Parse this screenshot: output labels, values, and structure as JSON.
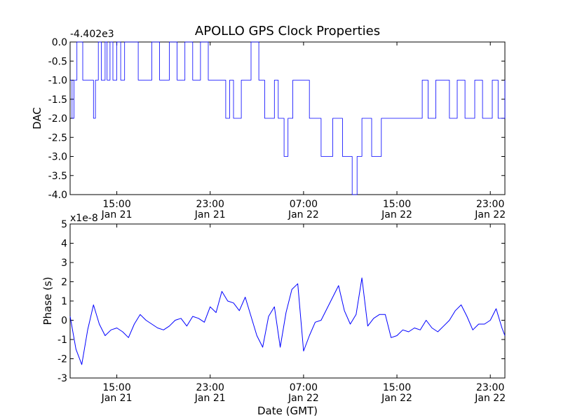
{
  "chart_data": [
    {
      "type": "line",
      "title": "APOLLO GPS Clock Properties",
      "xlabel": "",
      "ylabel": "DAC",
      "offset_label": "-4.402e3",
      "xlim": [
        "2011-01-21 11:00",
        "2011-01-23 00:15"
      ],
      "ylim": [
        -4.0,
        0.0
      ],
      "yticks": [
        "0.0",
        "-0.5",
        "-1.0",
        "-1.5",
        "-2.0",
        "-2.5",
        "-3.0",
        "-3.5",
        "-4.0"
      ],
      "xticks": [
        {
          "t": "2011-01-21 15:00",
          "time": "15:00",
          "date": "Jan 21"
        },
        {
          "t": "2011-01-21 23:00",
          "time": "23:00",
          "date": "Jan 21"
        },
        {
          "t": "2011-01-22 07:00",
          "time": "07:00",
          "date": "Jan 22"
        },
        {
          "t": "2011-01-22 15:00",
          "time": "15:00",
          "date": "Jan 22"
        },
        {
          "t": "2011-01-22 23:00",
          "time": "23:00",
          "date": "Jan 22"
        }
      ],
      "series": [
        {
          "x": [
            "2011-01-21 11:00",
            "2011-01-21 11:10",
            "2011-01-21 11:20",
            "2011-01-21 11:35",
            "2011-01-21 12:05",
            "2011-01-21 13:00",
            "2011-01-21 13:10",
            "2011-01-21 13:25",
            "2011-01-21 13:40",
            "2011-01-21 14:00",
            "2011-01-21 14:10",
            "2011-01-21 14:25",
            "2011-01-21 14:40",
            "2011-01-21 15:00",
            "2011-01-21 15:20",
            "2011-01-21 15:40",
            "2011-01-21 16:50",
            "2011-01-21 18:00",
            "2011-01-21 18:40",
            "2011-01-21 19:30",
            "2011-01-21 20:10",
            "2011-01-21 20:50",
            "2011-01-21 21:30",
            "2011-01-21 22:10",
            "2011-01-21 22:50",
            "2011-01-21 23:40",
            "2011-01-22 00:20",
            "2011-01-22 00:40",
            "2011-01-22 01:00",
            "2011-01-22 01:40",
            "2011-01-22 02:30",
            "2011-01-22 03:10",
            "2011-01-22 03:40",
            "2011-01-22 04:30",
            "2011-01-22 04:50",
            "2011-01-22 05:20",
            "2011-01-22 05:40",
            "2011-01-22 06:05",
            "2011-01-22 06:35",
            "2011-01-22 07:00",
            "2011-01-22 07:30",
            "2011-01-22 08:30",
            "2011-01-22 09:30",
            "2011-01-22 10:20",
            "2011-01-22 11:10",
            "2011-01-22 11:35",
            "2011-01-22 12:00",
            "2011-01-22 12:50",
            "2011-01-22 13:40",
            "2011-01-22 15:00",
            "2011-01-22 16:30",
            "2011-01-22 17:10",
            "2011-01-22 17:40",
            "2011-01-22 18:20",
            "2011-01-22 19:30",
            "2011-01-22 20:10",
            "2011-01-22 20:50",
            "2011-01-22 21:40",
            "2011-01-22 22:20",
            "2011-01-22 23:10",
            "2011-01-22 23:40",
            "2011-01-23 00:15"
          ],
          "values": [
            -1.0,
            -2.0,
            -1.0,
            0.0,
            -1.0,
            -2.0,
            -1.0,
            0.0,
            -1.0,
            0.0,
            -1.0,
            0.0,
            -1.0,
            0.0,
            -1.0,
            0.0,
            -1.0,
            0.0,
            -1.0,
            0.0,
            -1.0,
            0.0,
            -1.0,
            0.0,
            -1.0,
            -1.0,
            -2.0,
            -1.0,
            -2.0,
            -1.0,
            0.0,
            -1.0,
            -2.0,
            -1.0,
            -2.0,
            -3.0,
            -2.0,
            -1.0,
            -1.0,
            -1.0,
            -2.0,
            -3.0,
            -2.0,
            -3.0,
            -4.0,
            -3.0,
            -2.0,
            -3.0,
            -2.0,
            -2.0,
            -2.0,
            -1.0,
            -2.0,
            -1.0,
            -2.0,
            -1.0,
            -2.0,
            -1.0,
            -2.0,
            -1.0,
            -2.0,
            -1.0
          ]
        }
      ]
    },
    {
      "type": "line",
      "title": "",
      "xlabel": "Date (GMT)",
      "ylabel": "Phase (s)",
      "offset_label": "x1e-8",
      "xlim": [
        "2011-01-21 11:00",
        "2011-01-23 00:15"
      ],
      "ylim": [
        -3,
        5
      ],
      "yticks": [
        "5",
        "4",
        "3",
        "2",
        "1",
        "0",
        "-1",
        "-2",
        "-3"
      ],
      "xticks": [
        {
          "t": "2011-01-21 15:00",
          "time": "15:00",
          "date": "Jan 21"
        },
        {
          "t": "2011-01-21 23:00",
          "time": "23:00",
          "date": "Jan 21"
        },
        {
          "t": "2011-01-22 07:00",
          "time": "07:00",
          "date": "Jan 22"
        },
        {
          "t": "2011-01-22 15:00",
          "time": "15:00",
          "date": "Jan 22"
        },
        {
          "t": "2011-01-22 23:00",
          "time": "23:00",
          "date": "Jan 22"
        }
      ],
      "series": [
        {
          "x": [
            "2011-01-21 11:00",
            "2011-01-21 11:30",
            "2011-01-21 12:00",
            "2011-01-21 12:30",
            "2011-01-21 13:00",
            "2011-01-21 13:30",
            "2011-01-21 14:00",
            "2011-01-21 14:30",
            "2011-01-21 15:00",
            "2011-01-21 15:30",
            "2011-01-21 16:00",
            "2011-01-21 16:30",
            "2011-01-21 17:00",
            "2011-01-21 17:30",
            "2011-01-21 18:00",
            "2011-01-21 18:30",
            "2011-01-21 19:00",
            "2011-01-21 19:30",
            "2011-01-21 20:00",
            "2011-01-21 20:30",
            "2011-01-21 21:00",
            "2011-01-21 21:30",
            "2011-01-21 22:00",
            "2011-01-21 22:30",
            "2011-01-21 23:00",
            "2011-01-21 23:30",
            "2011-01-22 00:00",
            "2011-01-22 00:30",
            "2011-01-22 01:00",
            "2011-01-22 01:30",
            "2011-01-22 02:00",
            "2011-01-22 02:30",
            "2011-01-22 03:00",
            "2011-01-22 03:30",
            "2011-01-22 04:00",
            "2011-01-22 04:30",
            "2011-01-22 05:00",
            "2011-01-22 05:30",
            "2011-01-22 06:00",
            "2011-01-22 06:30",
            "2011-01-22 07:00",
            "2011-01-22 07:30",
            "2011-01-22 08:00",
            "2011-01-22 08:30",
            "2011-01-22 09:00",
            "2011-01-22 09:30",
            "2011-01-22 10:00",
            "2011-01-22 10:30",
            "2011-01-22 11:00",
            "2011-01-22 11:30",
            "2011-01-22 12:00",
            "2011-01-22 12:30",
            "2011-01-22 13:00",
            "2011-01-22 13:30",
            "2011-01-22 14:00",
            "2011-01-22 14:30",
            "2011-01-22 15:00",
            "2011-01-22 15:30",
            "2011-01-22 16:00",
            "2011-01-22 16:30",
            "2011-01-22 17:00",
            "2011-01-22 17:30",
            "2011-01-22 18:00",
            "2011-01-22 18:30",
            "2011-01-22 19:00",
            "2011-01-22 19:30",
            "2011-01-22 20:00",
            "2011-01-22 20:30",
            "2011-01-22 21:00",
            "2011-01-22 21:30",
            "2011-01-22 22:00",
            "2011-01-22 22:30",
            "2011-01-22 23:00",
            "2011-01-22 23:30",
            "2011-01-23 00:00",
            "2011-01-23 00:15"
          ],
          "values": [
            0.2,
            -1.5,
            -2.3,
            -0.5,
            0.8,
            -0.2,
            -0.8,
            -0.5,
            -0.4,
            -0.6,
            -0.9,
            -0.2,
            0.3,
            0.0,
            -0.2,
            -0.4,
            -0.5,
            -0.3,
            0.0,
            0.1,
            -0.3,
            0.2,
            0.1,
            -0.1,
            0.7,
            0.4,
            1.5,
            1.0,
            0.9,
            0.5,
            1.2,
            0.2,
            -0.8,
            -1.4,
            0.2,
            0.7,
            -1.4,
            0.4,
            1.6,
            1.9,
            -1.6,
            -0.8,
            -0.1,
            0.0,
            0.6,
            1.2,
            1.8,
            0.5,
            -0.2,
            0.3,
            2.2,
            -0.3,
            0.1,
            0.3,
            0.3,
            -0.9,
            -0.8,
            -0.5,
            -0.6,
            -0.4,
            -0.5,
            0.0,
            -0.4,
            -0.6,
            -0.3,
            0.0,
            0.5,
            0.8,
            0.2,
            -0.5,
            -0.2,
            -0.2,
            0.0,
            0.6,
            -0.4,
            -0.8
          ]
        }
      ]
    }
  ]
}
